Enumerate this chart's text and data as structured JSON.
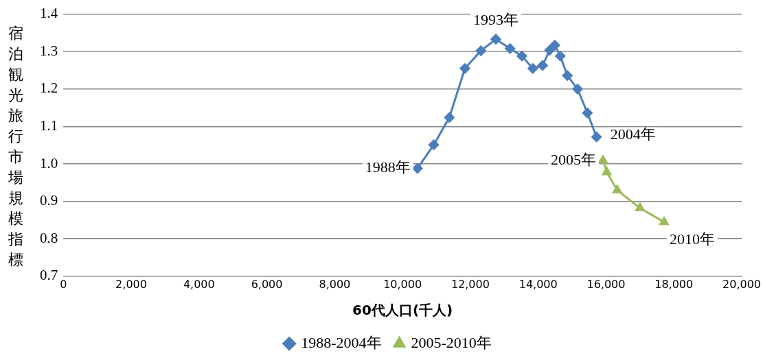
{
  "chart_data": {
    "type": "line",
    "xlabel": "60代人口(千人)",
    "ylabel": "宿泊観光旅行市場規模指標",
    "xlim": [
      0,
      20000
    ],
    "xticks": [
      0,
      {
        "value": 2000,
        "label": "2,000"
      },
      {
        "value": 4000,
        "label": "4,000"
      },
      {
        "value": 6000,
        "label": "6,000"
      },
      {
        "value": 8000,
        "label": "8,000"
      },
      {
        "value": 10000,
        "label": "10,000"
      },
      {
        "value": 12000,
        "label": "12,000"
      },
      {
        "value": 14000,
        "label": "14,000"
      },
      {
        "value": 16000,
        "label": "16,000"
      },
      {
        "value": 18000,
        "label": "18,000"
      },
      {
        "value": 20000,
        "label": "20,000"
      }
    ],
    "ylim": [
      0.7,
      1.4
    ],
    "yticks": [
      {
        "value": 0.7,
        "label": "0.7"
      },
      {
        "value": 0.8,
        "label": "0.8"
      },
      {
        "value": 0.9,
        "label": "0.9"
      },
      {
        "value": 1.0,
        "label": "1.0"
      },
      {
        "value": 1.1,
        "label": "1.1"
      },
      {
        "value": 1.2,
        "label": "1.2"
      },
      {
        "value": 1.3,
        "label": "1.3"
      },
      {
        "value": 1.4,
        "label": "1.4"
      }
    ],
    "grid": "y",
    "legend": "bottom",
    "line_style": "solid",
    "series": [
      {
        "name": "1988-2004年",
        "color": "#4a7ebb",
        "marker": "diamond",
        "x": [
          10440,
          10920,
          11380,
          11840,
          12310,
          12750,
          13170,
          13520,
          13840,
          14130,
          14340,
          14490,
          14650,
          14860,
          15160,
          15450,
          15720
        ],
        "values": [
          0.988,
          1.051,
          1.124,
          1.255,
          1.302,
          1.333,
          1.308,
          1.288,
          1.255,
          1.263,
          1.304,
          1.317,
          1.288,
          1.236,
          1.2,
          1.136,
          1.072
        ]
      },
      {
        "name": "2005-2010年",
        "color": "#9bbb59",
        "marker": "triangle",
        "x": [
          15910,
          16020,
          16330,
          17000,
          17710
        ],
        "values": [
          1.009,
          0.978,
          0.93,
          0.882,
          0.845
        ]
      }
    ],
    "annotations": [
      {
        "text": "1988年",
        "x": 10440,
        "y": 0.988
      },
      {
        "text": "1993年",
        "x": 12750,
        "y": 1.333
      },
      {
        "text": "2004年",
        "x": 15720,
        "y": 1.072
      },
      {
        "text": "2005年",
        "x": 15910,
        "y": 1.009
      },
      {
        "text": "2010年",
        "x": 17710,
        "y": 0.845
      }
    ]
  }
}
